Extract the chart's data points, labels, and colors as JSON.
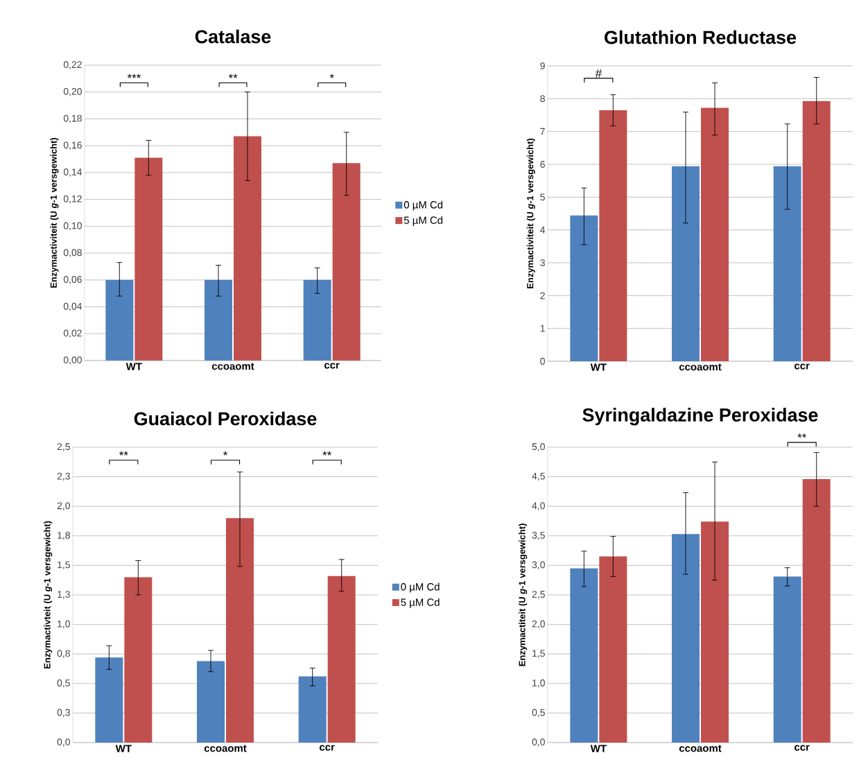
{
  "chart_data": [
    {
      "type": "bar",
      "title": "Catalase",
      "ylabel": "Enzymactiviteit (U *g*-1 versgewicht)",
      "categories": [
        "WT",
        "ccoaomt",
        "ccr"
      ],
      "series": [
        {
          "name": "0 µM Cd",
          "color": "#4f81bd",
          "values": [
            0.06,
            0.06,
            0.06
          ],
          "errors": [
            [
              0.048,
              0.073
            ],
            [
              0.048,
              0.071
            ],
            [
              0.05,
              0.069
            ]
          ]
        },
        {
          "name": "5 µM Cd",
          "color": "#c0504d",
          "values": [
            0.151,
            0.167,
            0.147
          ],
          "errors": [
            [
              0.138,
              0.164
            ],
            [
              0.134,
              0.2
            ],
            [
              0.123,
              0.17
            ]
          ]
        }
      ],
      "ylim": [
        0,
        0.22
      ],
      "yticks": [
        {
          "value": 0,
          "label": "0,00"
        },
        {
          "value": 0.02,
          "label": "0,02"
        },
        {
          "value": 0.04,
          "label": "0,04"
        },
        {
          "value": 0.06,
          "label": "0,06"
        },
        {
          "value": 0.08,
          "label": "0,08"
        },
        {
          "value": 0.1,
          "label": "0,10"
        },
        {
          "value": 0.12,
          "label": "0,12"
        },
        {
          "value": 0.14,
          "label": "0,14"
        },
        {
          "value": 0.16,
          "label": "0,16"
        },
        {
          "value": 0.18,
          "label": "0,18"
        },
        {
          "value": 0.2,
          "label": "0,20"
        },
        {
          "value": 0.22,
          "label": "0,22"
        }
      ],
      "grid": "y",
      "legend": "right",
      "annotations": [
        "***",
        "**",
        "*"
      ]
    },
    {
      "type": "bar",
      "title": "Glutathion Reductase",
      "ylabel": "Enzymactiviteit (U *g*-1 versgewicht)",
      "categories": [
        "WT",
        "ccoaomt",
        "ccr"
      ],
      "series": [
        {
          "color": "#4f81bd",
          "values": [
            4.44,
            5.94,
            5.94
          ],
          "errors": [
            [
              3.55,
              5.28
            ],
            [
              4.21,
              7.59
            ],
            [
              4.63,
              7.23
            ]
          ]
        },
        {
          "color": "#c0504d",
          "values": [
            7.65,
            7.72,
            7.93
          ],
          "errors": [
            [
              7.17,
              8.12
            ],
            [
              6.89,
              8.48
            ],
            [
              7.23,
              8.65
            ]
          ]
        }
      ],
      "ylim": [
        0,
        9
      ],
      "yticks": [
        0,
        1,
        2,
        3,
        4,
        5,
        6,
        7,
        8,
        9
      ],
      "grid": "y",
      "annotations": [
        "#"
      ]
    },
    {
      "type": "bar",
      "title": "Guaiacol Peroxidase",
      "ylabel": "Enzymactivteit (U *g*-1 versgewicht)",
      "categories": [
        "WT",
        "ccoaomt",
        "ccr"
      ],
      "series": [
        {
          "name": "0 µM Cd",
          "color": "#4f81bd",
          "values": [
            0.72,
            0.69,
            0.56
          ],
          "errors": [
            [
              0.62,
              0.82
            ],
            [
              0.6,
              0.78
            ],
            [
              0.48,
              0.63
            ]
          ]
        },
        {
          "name": "5 µM Cd",
          "color": "#c0504d",
          "values": [
            1.4,
            1.9,
            1.41
          ],
          "errors": [
            [
              1.25,
              1.54
            ],
            [
              1.49,
              2.29
            ],
            [
              1.28,
              1.55
            ]
          ]
        }
      ],
      "ylim": [
        0,
        2.5
      ],
      "yticks": [
        {
          "value": 0,
          "label": "0,0"
        },
        {
          "value": 0.25,
          "label": "0,3"
        },
        {
          "value": 0.5,
          "label": "0,5"
        },
        {
          "value": 0.75,
          "label": "0,8"
        },
        {
          "value": 1.0,
          "label": "1,0"
        },
        {
          "value": 1.25,
          "label": "1,3"
        },
        {
          "value": 1.5,
          "label": "1,5"
        },
        {
          "value": 1.75,
          "label": "1,8"
        },
        {
          "value": 2.0,
          "label": "2,0"
        },
        {
          "value": 2.25,
          "label": "2,3"
        },
        {
          "value": 2.5,
          "label": "2,5"
        }
      ],
      "grid": "y",
      "legend": "right",
      "annotations": [
        "**",
        "*",
        "**"
      ]
    },
    {
      "type": "bar",
      "title": "Syringaldazine Peroxidase",
      "ylabel": "Enzymactiteit (U *g*-1 versgewicht)",
      "categories": [
        "WT",
        "ccoaomt",
        "ccr"
      ],
      "series": [
        {
          "color": "#4f81bd",
          "values": [
            2.95,
            3.53,
            2.81
          ],
          "errors": [
            [
              2.64,
              3.24
            ],
            [
              2.85,
              4.23
            ],
            [
              2.65,
              2.96
            ]
          ]
        },
        {
          "color": "#c0504d",
          "values": [
            3.15,
            3.74,
            4.46
          ],
          "errors": [
            [
              2.81,
              3.49
            ],
            [
              2.75,
              4.75
            ],
            [
              4.0,
              4.91
            ]
          ]
        }
      ],
      "ylim": [
        0,
        5.0
      ],
      "yticks": [
        {
          "value": 0,
          "label": "0,0"
        },
        {
          "value": 0.5,
          "label": "0,5"
        },
        {
          "value": 1.0,
          "label": "1,0"
        },
        {
          "value": 1.5,
          "label": "1,5"
        },
        {
          "value": 2.0,
          "label": "2,0"
        },
        {
          "value": 2.5,
          "label": "2,5"
        },
        {
          "value": 3.0,
          "label": "3,0"
        },
        {
          "value": 3.5,
          "label": "3,5"
        },
        {
          "value": 4.0,
          "label": "4,0"
        },
        {
          "value": 4.5,
          "label": "4,5"
        },
        {
          "value": 5.0,
          "label": "5,0"
        }
      ],
      "grid": "y",
      "annotations": [
        "**"
      ]
    }
  ]
}
